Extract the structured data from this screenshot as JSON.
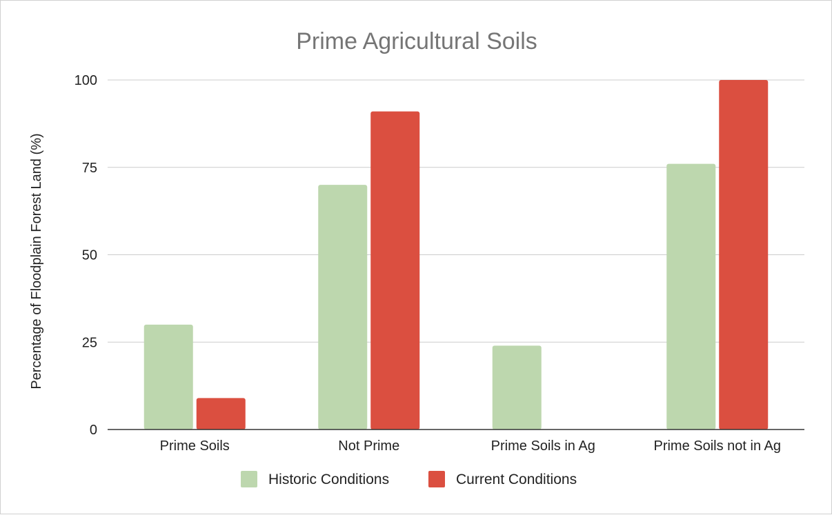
{
  "chart_data": {
    "type": "bar",
    "title": "Prime Agricultural Soils",
    "xlabel": "",
    "ylabel": "Percentage of Floodplain Forest Land (%)",
    "categories": [
      "Prime Soils",
      "Not Prime",
      "Prime Soils in Ag",
      "Prime Soils not in Ag"
    ],
    "series": [
      {
        "name": "Historic Conditions",
        "color": "#bdd7ae",
        "values": [
          30,
          70,
          24,
          76
        ]
      },
      {
        "name": "Current Conditions",
        "color": "#db4f40",
        "values": [
          9,
          91,
          0,
          100
        ]
      }
    ],
    "ylim": [
      0,
      100
    ],
    "yticks": [
      0,
      25,
      50,
      75,
      100
    ],
    "grid": true,
    "legend": "bottom"
  }
}
